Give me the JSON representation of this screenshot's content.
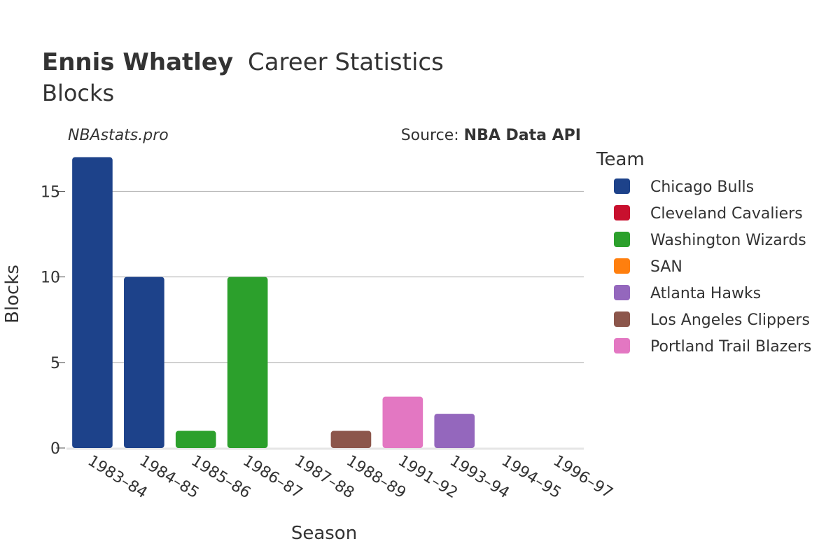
{
  "header": {
    "title_name": "Ennis Whatley",
    "title_rest": "Career Statistics",
    "subtitle": "Blocks"
  },
  "credits": {
    "site": "NBAstats.pro",
    "source_prefix": "Source: ",
    "source_name": "NBA Data API"
  },
  "legend": {
    "title": "Team",
    "items": [
      {
        "label": "Chicago Bulls",
        "color": "#1d428a"
      },
      {
        "label": "Cleveland Cavaliers",
        "color": "#c8102e"
      },
      {
        "label": "Washington Wizards",
        "color": "#2ca02c"
      },
      {
        "label": "SAN",
        "color": "#ff7f0e"
      },
      {
        "label": "Atlanta Hawks",
        "color": "#9467bd"
      },
      {
        "label": "Los Angeles Clippers",
        "color": "#8c564b"
      },
      {
        "label": "Portland Trail Blazers",
        "color": "#e377c2"
      }
    ]
  },
  "chart_data": {
    "type": "bar",
    "xlabel": "Season",
    "ylabel": "Blocks",
    "categories": [
      "1983–84",
      "1984–85",
      "1985–86",
      "1986–87",
      "1987–88",
      "1988–89",
      "1991–92",
      "1993–94",
      "1994–95",
      "1996–97"
    ],
    "values": [
      17,
      10,
      1,
      10,
      0,
      1,
      3,
      2,
      0,
      0
    ],
    "bar_teams": [
      "Chicago Bulls",
      "Chicago Bulls",
      "Washington Wizards",
      "Washington Wizards",
      "SAN",
      "Los Angeles Clippers",
      "Portland Trail Blazers",
      "Atlanta Hawks",
      "Cleveland Cavaliers",
      "Cleveland Cavaliers"
    ],
    "yticks": [
      0,
      5,
      10,
      15
    ],
    "ylim": [
      0,
      17.8
    ],
    "grid": true
  }
}
